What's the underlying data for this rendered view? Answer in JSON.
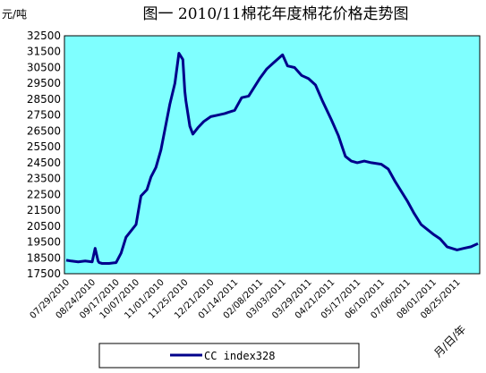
{
  "chart_data": {
    "type": "line",
    "title": "图一   2010/11棉花年度棉花价格走势图",
    "ylabel": "元/吨",
    "xlabel": "月/日/年",
    "ylim": [
      17500,
      32500
    ],
    "yticks": [
      17500,
      18500,
      19500,
      20500,
      21500,
      22500,
      23500,
      24500,
      25500,
      26500,
      27500,
      28500,
      29500,
      30500,
      31500,
      32500
    ],
    "xtick_labels": [
      "07/29/2010",
      "08/24/2010",
      "09/17/2010",
      "10/07/2010",
      "11/01/2010",
      "11/25/2010",
      "12/21/2010",
      "01/14/2011",
      "02/08/2011",
      "03/03/2011",
      "03/29/2011",
      "04/21/2011",
      "05/17/2011",
      "06/10/2011",
      "07/06/2011",
      "08/01/2011",
      "08/25/2011"
    ],
    "grid": false,
    "legend_position": "bottom",
    "colors": {
      "plot_background": "#7fffff",
      "line": "#00008b",
      "frame": "#000000"
    },
    "series": [
      {
        "name": "CC index328",
        "x": [
          "07/29/2010",
          "08/03/2010",
          "08/10/2010",
          "08/17/2010",
          "08/24/2010",
          "08/27/2010",
          "08/30/2010",
          "08/31/2010",
          "09/03/2010",
          "09/10/2010",
          "09/17/2010",
          "09/22/2010",
          "09/27/2010",
          "10/07/2010",
          "10/12/2010",
          "10/18/2010",
          "10/22/2010",
          "10/27/2010",
          "11/01/2010",
          "11/05/2010",
          "11/10/2010",
          "11/15/2010",
          "11/19/2010",
          "11/23/2010",
          "11/25/2010",
          "11/26/2010",
          "11/30/2010",
          "12/03/2010",
          "12/08/2010",
          "12/14/2010",
          "12/21/2010",
          "12/28/2010",
          "01/04/2011",
          "01/14/2011",
          "01/21/2011",
          "01/28/2011",
          "02/08/2011",
          "02/15/2011",
          "02/22/2011",
          "03/03/2011",
          "03/08/2011",
          "03/15/2011",
          "03/22/2011",
          "03/29/2011",
          "04/05/2011",
          "04/12/2011",
          "04/21/2011",
          "04/28/2011",
          "05/05/2011",
          "05/11/2011",
          "05/17/2011",
          "05/24/2011",
          "05/31/2011",
          "06/10/2011",
          "06/17/2011",
          "06/24/2011",
          "07/06/2011",
          "07/13/2011",
          "07/20/2011",
          "08/01/2011",
          "08/08/2011",
          "08/15/2011",
          "08/25/2011",
          "09/01/2011",
          "09/08/2011",
          "09/15/2011"
        ],
        "values": [
          18350,
          18300,
          18250,
          18300,
          18250,
          19100,
          18300,
          18200,
          18150,
          18150,
          18200,
          18800,
          19800,
          20600,
          22400,
          22800,
          23600,
          24200,
          25300,
          26600,
          28200,
          29500,
          31400,
          31000,
          29000,
          28400,
          26800,
          26300,
          26700,
          27100,
          27400,
          27500,
          27600,
          27800,
          28600,
          28700,
          29800,
          30400,
          30800,
          31300,
          30600,
          30500,
          30000,
          29800,
          29400,
          28400,
          27200,
          26200,
          24900,
          24600,
          24500,
          24600,
          24500,
          24400,
          24100,
          23300,
          22100,
          21300,
          20600,
          20000,
          19700,
          19200,
          19000,
          19100,
          19200,
          19400
        ]
      }
    ]
  }
}
